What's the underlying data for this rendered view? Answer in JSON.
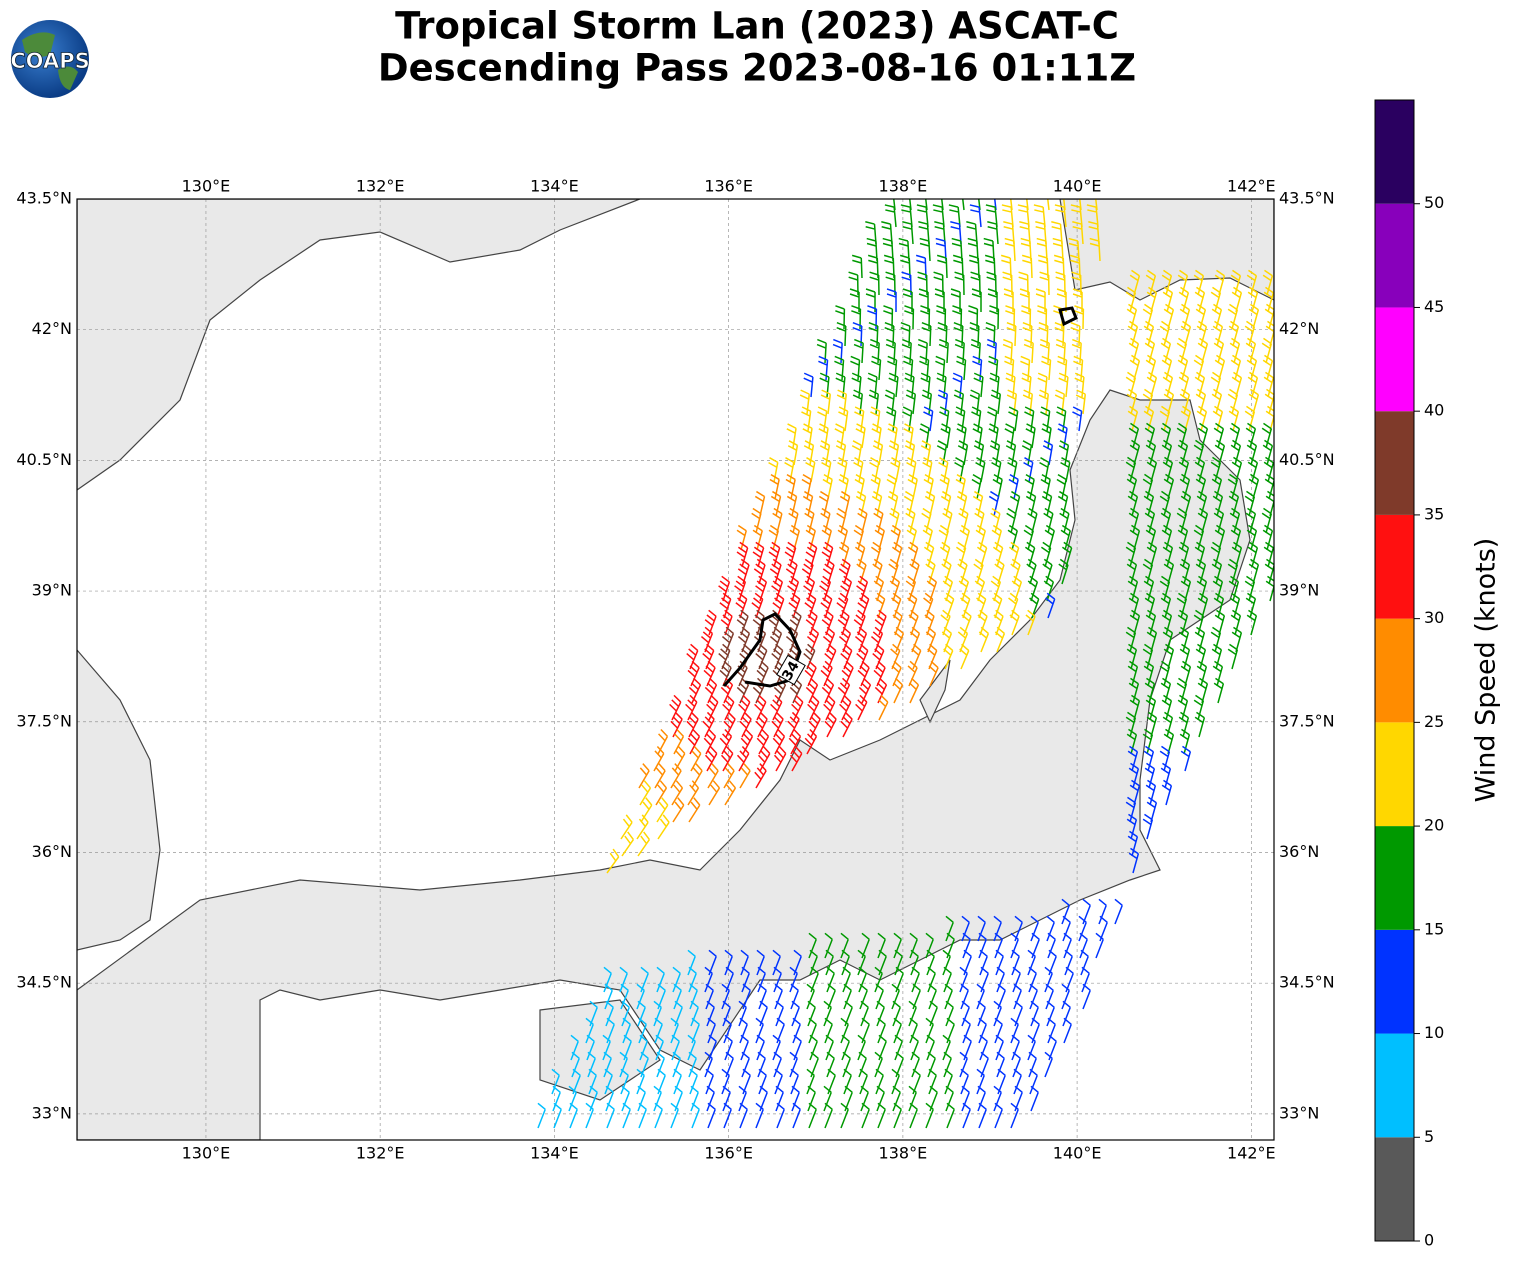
{
  "header": {
    "logo": "COAPS",
    "title_line1": "Tropical Storm Lan (2023) ASCAT-C",
    "title_line2": "Descending Pass 2023-08-16 01:11Z"
  },
  "map": {
    "lonlim": [
      128.52,
      142.26
    ],
    "latlim": [
      32.7,
      43.5
    ],
    "lonticks": [
      {
        "value": 130,
        "label": "130°E"
      },
      {
        "value": 132,
        "label": "132°E"
      },
      {
        "value": 134,
        "label": "134°E"
      },
      {
        "value": 136,
        "label": "136°E"
      },
      {
        "value": 138,
        "label": "138°E"
      },
      {
        "value": 140,
        "label": "140°E"
      },
      {
        "value": 142,
        "label": "142°E"
      }
    ],
    "latticks": [
      {
        "value": 43.5,
        "label": "43.5°N"
      },
      {
        "value": 42,
        "label": "42°N"
      },
      {
        "value": 40.5,
        "label": "40.5°N"
      },
      {
        "value": 39,
        "label": "39°N"
      },
      {
        "value": 37.5,
        "label": "37.5°N"
      },
      {
        "value": 36,
        "label": "36°N"
      },
      {
        "value": 34.5,
        "label": "34.5°N"
      },
      {
        "value": 33,
        "label": "33°N"
      }
    ],
    "grid": true,
    "contour_label": "34"
  },
  "colorbar": {
    "label": "Wind Speed (knots)",
    "clim": [
      0,
      55
    ],
    "levels": [
      0,
      5,
      10,
      15,
      20,
      25,
      30,
      35,
      40,
      45,
      50,
      55
    ],
    "colors": [
      "#595959",
      "#00bfff",
      "#0033ff",
      "#009900",
      "#ffd700",
      "#ff8c00",
      "#ff1010",
      "#7f3a2a",
      "#ff00ff",
      "#8800bb",
      "#2a0060"
    ],
    "ticks": [
      0,
      5,
      10,
      15,
      20,
      25,
      30,
      35,
      40,
      45,
      50
    ]
  }
}
